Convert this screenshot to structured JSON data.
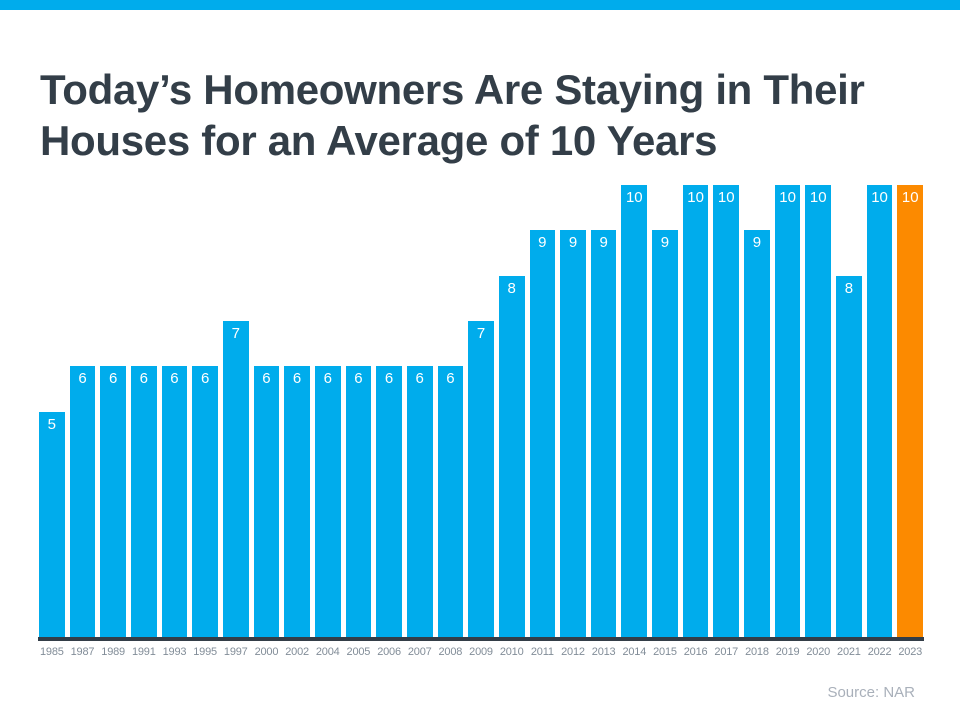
{
  "page": {
    "title": "Today’s Homeowners Are Staying in Their Houses for an Average of 10 Years",
    "source_note": "Source: NAR"
  },
  "colors": {
    "accent_cyan": "#00ACEC",
    "highlight_orange": "#FC8A00",
    "title_text": "#333E48",
    "axis_line": "#333D47",
    "year_label": "#828D98",
    "value_label": "#FFFFFF",
    "source_text": "#A9B0BA",
    "background": "#FFFFFF"
  },
  "chart_data": {
    "type": "bar",
    "title": "Today’s Homeowners Are Staying in Their Houses for an Average of 10 Years",
    "categories": [
      "1985",
      "1987",
      "1989",
      "1991",
      "1993",
      "1995",
      "1997",
      "2000",
      "2002",
      "2004",
      "2005",
      "2006",
      "2007",
      "2008",
      "2009",
      "2010",
      "2011",
      "2012",
      "2013",
      "2014",
      "2015",
      "2016",
      "2017",
      "2018",
      "2019",
      "2020",
      "2021",
      "2022",
      "2023"
    ],
    "values": [
      5,
      6,
      6,
      6,
      6,
      6,
      7,
      6,
      6,
      6,
      6,
      6,
      6,
      6,
      7,
      8,
      9,
      9,
      9,
      10,
      9,
      10,
      10,
      9,
      10,
      10,
      8,
      10,
      10
    ],
    "xlabel": "",
    "ylabel": "",
    "ylim": [
      0,
      10
    ],
    "grid": false,
    "legend": false,
    "value_labels_shown": true,
    "bar_color": "#00ACEC",
    "highlight_index": 28,
    "highlight_color": "#FC8A00",
    "source": "Source: NAR"
  }
}
